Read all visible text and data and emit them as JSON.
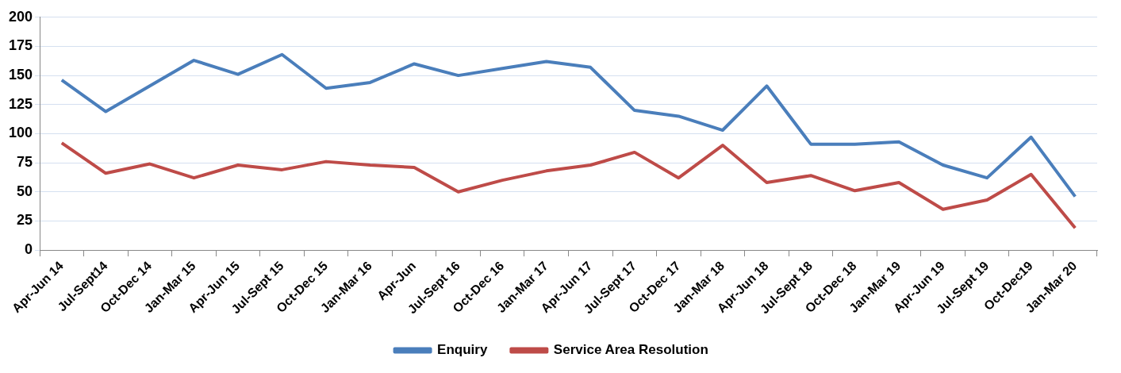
{
  "chart_data": {
    "type": "line",
    "categories": [
      "Apr-Jun 14",
      "Jul-Sept14",
      "Oct-Dec 14",
      "Jan-Mar 15",
      "Apr-Jun 15",
      "Jul-Sept 15",
      "Oct-Dec 15",
      "Jan-Mar 16",
      "Apr-Jun",
      "Jul-Sept 16",
      "Oct-Dec 16",
      "Jan-Mar 17",
      "Apr-Jun 17",
      "Jul-Sept 17",
      "Oct-Dec 17",
      "Jan-Mar 18",
      "Apr-Jun 18",
      "Jul-Sept 18",
      "Oct-Dec 18",
      "Jan-Mar 19",
      "Apr-Jun 19",
      "Jul-Sept 19",
      "Oct-Dec19",
      "Jan-Mar 20"
    ],
    "series": [
      {
        "name": "Enquiry",
        "color": "#4a7ebb",
        "values": [
          146,
          119,
          141,
          163,
          151,
          168,
          139,
          144,
          160,
          150,
          156,
          162,
          157,
          120,
          115,
          103,
          141,
          91,
          91,
          93,
          73,
          62,
          97,
          46
        ]
      },
      {
        "name": "Service Area Resolution",
        "color": "#be4b48",
        "values": [
          92,
          66,
          74,
          62,
          73,
          69,
          76,
          73,
          71,
          50,
          60,
          68,
          73,
          84,
          62,
          90,
          58,
          64,
          51,
          58,
          35,
          43,
          65,
          19
        ]
      }
    ],
    "ylim": [
      0,
      200
    ],
    "yticks": [
      0,
      25,
      50,
      75,
      100,
      125,
      150,
      175,
      200
    ],
    "grid": "y",
    "legend": "bottom",
    "marker": "none",
    "line_style": "solid"
  }
}
